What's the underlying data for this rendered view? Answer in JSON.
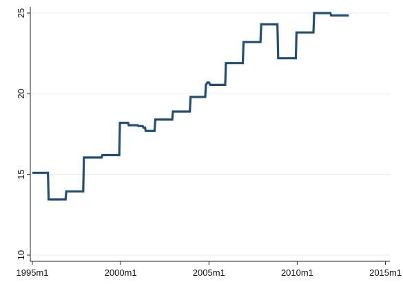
{
  "chart_data": {
    "type": "line",
    "title": "",
    "xlabel": "",
    "ylabel": "",
    "xlim": [
      1995,
      2015.25
    ],
    "ylim": [
      10,
      25
    ],
    "grid": true,
    "x_ticks": [
      {
        "value": 1995,
        "label": "1995m1"
      },
      {
        "value": 2000,
        "label": "2000m1"
      },
      {
        "value": 2005,
        "label": "2005m1"
      },
      {
        "value": 2010,
        "label": "2010m1"
      },
      {
        "value": 2015,
        "label": "2015m1"
      }
    ],
    "y_ticks": [
      {
        "value": 10,
        "label": "10"
      },
      {
        "value": 15,
        "label": "15"
      },
      {
        "value": 20,
        "label": "20"
      },
      {
        "value": 25,
        "label": "25"
      }
    ],
    "series": [
      {
        "color": "#1f4e79",
        "points": [
          [
            1995.0,
            15.1
          ],
          [
            1995.88,
            15.1
          ],
          [
            1995.92,
            13.45
          ],
          [
            1996.88,
            13.45
          ],
          [
            1996.92,
            13.95
          ],
          [
            1997.88,
            13.95
          ],
          [
            1997.92,
            16.05
          ],
          [
            1998.92,
            16.05
          ],
          [
            1998.96,
            16.2
          ],
          [
            1999.92,
            16.2
          ],
          [
            1999.96,
            18.2
          ],
          [
            2000.42,
            18.2
          ],
          [
            2000.46,
            18.05
          ],
          [
            2000.96,
            18.05
          ],
          [
            2001.0,
            18.0
          ],
          [
            2001.25,
            18.0
          ],
          [
            2001.29,
            17.9
          ],
          [
            2001.38,
            17.9
          ],
          [
            2001.42,
            17.7
          ],
          [
            2001.92,
            17.7
          ],
          [
            2001.96,
            18.4
          ],
          [
            2002.92,
            18.4
          ],
          [
            2002.96,
            18.9
          ],
          [
            2003.92,
            18.9
          ],
          [
            2003.96,
            19.8
          ],
          [
            2004.79,
            19.8
          ],
          [
            2004.83,
            20.55
          ],
          [
            2004.92,
            20.7
          ],
          [
            2005.0,
            20.7
          ],
          [
            2005.08,
            20.55
          ],
          [
            2005.92,
            20.55
          ],
          [
            2005.96,
            21.9
          ],
          [
            2006.92,
            21.9
          ],
          [
            2006.96,
            23.2
          ],
          [
            2007.92,
            23.2
          ],
          [
            2007.96,
            24.3
          ],
          [
            2008.88,
            24.3
          ],
          [
            2008.92,
            22.2
          ],
          [
            2009.92,
            22.2
          ],
          [
            2009.96,
            23.8
          ],
          [
            2010.92,
            23.8
          ],
          [
            2010.96,
            25.0
          ],
          [
            2011.88,
            25.0
          ],
          [
            2011.92,
            24.85
          ],
          [
            2012.92,
            24.85
          ]
        ]
      }
    ]
  }
}
